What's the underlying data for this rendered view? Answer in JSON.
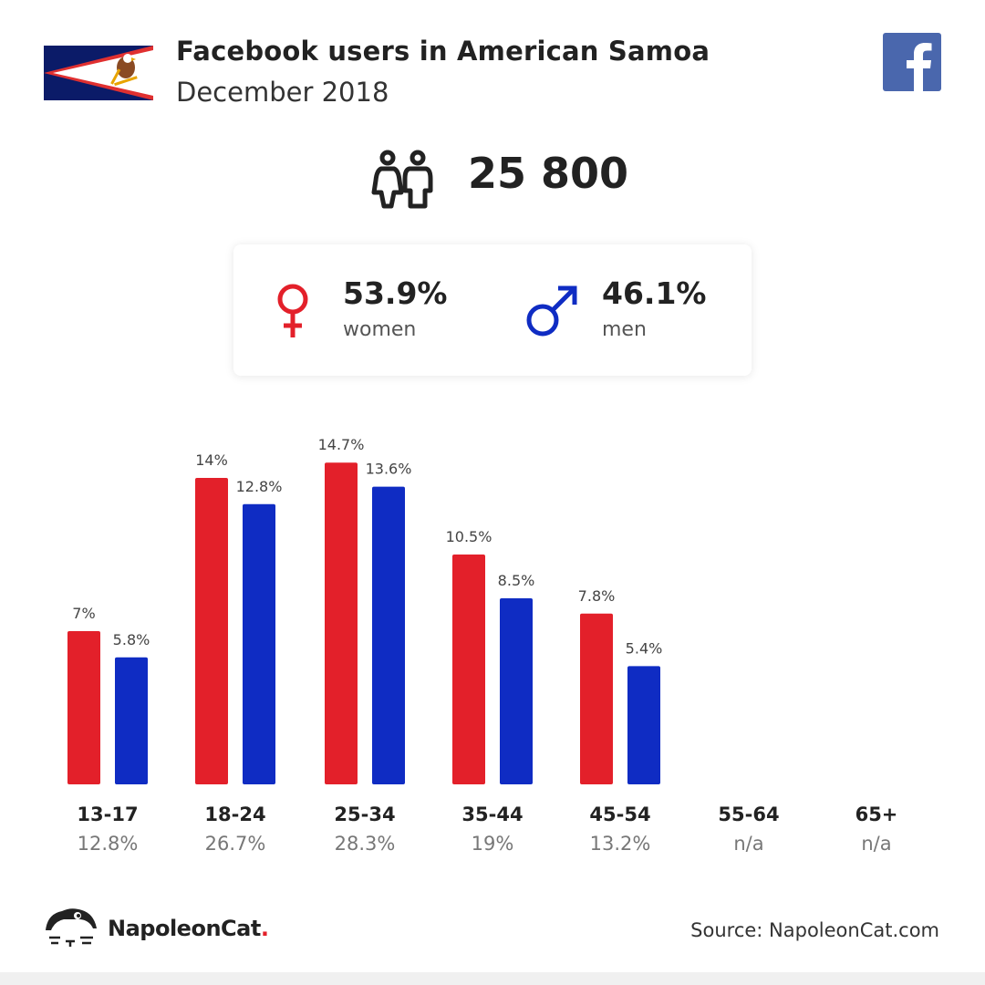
{
  "header": {
    "title": "Facebook users in American Samoa",
    "subtitle": "December 2018"
  },
  "total": {
    "value": "25 800"
  },
  "gender": {
    "women": {
      "percent": "53.9%",
      "label": "women",
      "color": "#e3202a"
    },
    "men": {
      "percent": "46.1%",
      "label": "men",
      "color": "#0f2cc3"
    }
  },
  "icons": {
    "flag": "american-samoa-flag-icon",
    "facebook": "facebook-logo-icon",
    "people": "people-icon",
    "female": "female-symbol-icon",
    "male": "male-symbol-icon",
    "brand": "napoleoncat-logo-icon"
  },
  "colors": {
    "women": "#e3202a",
    "men": "#0f2cc3",
    "facebook": "#4a67ad"
  },
  "chart_data": {
    "type": "bar",
    "categories": [
      "13-17",
      "18-24",
      "25-34",
      "35-44",
      "45-54",
      "55-64",
      "65+"
    ],
    "category_totals": [
      "12.8%",
      "26.7%",
      "28.3%",
      "19%",
      "13.2%",
      "n/a",
      "n/a"
    ],
    "series": [
      {
        "name": "women",
        "values": [
          7,
          14,
          14.7,
          10.5,
          7.8,
          null,
          null
        ],
        "labels": [
          "7%",
          "14%",
          "14.7%",
          "10.5%",
          "7.8%",
          "",
          ""
        ],
        "color": "#e3202a"
      },
      {
        "name": "men",
        "values": [
          5.8,
          12.8,
          13.6,
          8.5,
          5.4,
          null,
          null
        ],
        "labels": [
          "5.8%",
          "12.8%",
          "13.6%",
          "8.5%",
          "5.4%",
          "",
          ""
        ],
        "color": "#0f2cc3"
      }
    ],
    "ylim": [
      0,
      16
    ],
    "grid": false,
    "legend": "none"
  },
  "footer": {
    "brand_name": "NapoleonCat",
    "brand_dot": ".",
    "source": "Source: NapoleonCat.com"
  }
}
